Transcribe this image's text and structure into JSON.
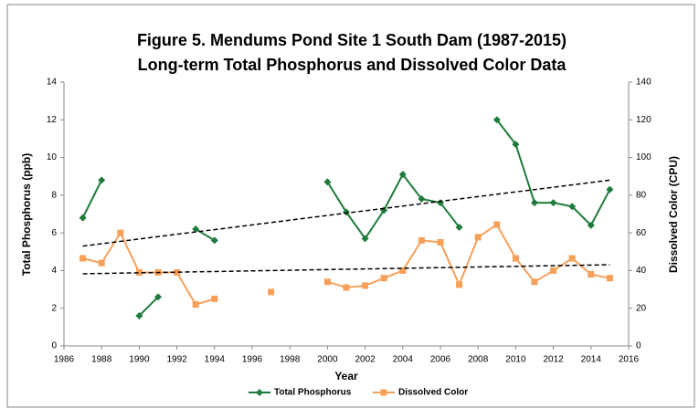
{
  "chart_data": {
    "type": "line",
    "title": "Figure 5. Mendums Pond Site 1 South Dam (1987-2015)",
    "subtitle": "Long-term Total Phosphorus and Dissolved Color Data",
    "x_label": "Year",
    "y_label": "Total Phosphorus (ppb)",
    "y2_label": "Dissolved Color (CPU)",
    "x": [
      1987,
      1988,
      1989,
      1990,
      1991,
      1992,
      1993,
      1994,
      1995,
      1996,
      1997,
      1998,
      1999,
      2000,
      2001,
      2002,
      2003,
      2004,
      2005,
      2006,
      2007,
      2008,
      2009,
      2010,
      2011,
      2012,
      2013,
      2014,
      2015
    ],
    "series": [
      {
        "name": "Total Phosphorus",
        "color": "#1e7b3c",
        "marker": "diamond",
        "axis": "y",
        "values": [
          6.8,
          8.8,
          null,
          1.6,
          2.6,
          null,
          6.2,
          5.6,
          null,
          null,
          null,
          null,
          null,
          8.7,
          7.1,
          5.7,
          7.2,
          9.1,
          7.8,
          7.6,
          6.3,
          null,
          12.0,
          10.7,
          7.6,
          7.6,
          7.4,
          6.4,
          8.3
        ]
      },
      {
        "name": "Dissolved Color",
        "color": "#f6a05a",
        "marker": "square",
        "axis": "y2",
        "values": [
          46.5,
          44,
          60,
          39,
          39,
          39,
          22,
          25,
          null,
          null,
          28.6,
          null,
          null,
          34,
          31,
          32,
          36,
          40,
          56,
          55,
          32.5,
          57.7,
          64.4,
          46.5,
          34,
          40,
          46.5,
          38,
          36
        ]
      }
    ],
    "trendlines": [
      {
        "axis": "y",
        "x": [
          1987,
          2015
        ],
        "values": [
          5.3,
          8.8
        ]
      },
      {
        "axis": "y2",
        "x": [
          1987,
          2015
        ],
        "values": [
          38.3,
          43.1
        ]
      }
    ],
    "xlim": [
      1986,
      2016
    ],
    "xticks": [
      1986,
      1988,
      1990,
      1992,
      1994,
      1996,
      1998,
      2000,
      2002,
      2004,
      2006,
      2008,
      2010,
      2012,
      2014,
      2016
    ],
    "ylim": [
      0,
      14
    ],
    "yticks": [
      0,
      2,
      4,
      6,
      8,
      10,
      12,
      14
    ],
    "y2lim": [
      0,
      140
    ],
    "y2ticks": [
      0,
      20,
      40,
      60,
      80,
      100,
      120,
      140
    ],
    "legend": "bottom"
  }
}
